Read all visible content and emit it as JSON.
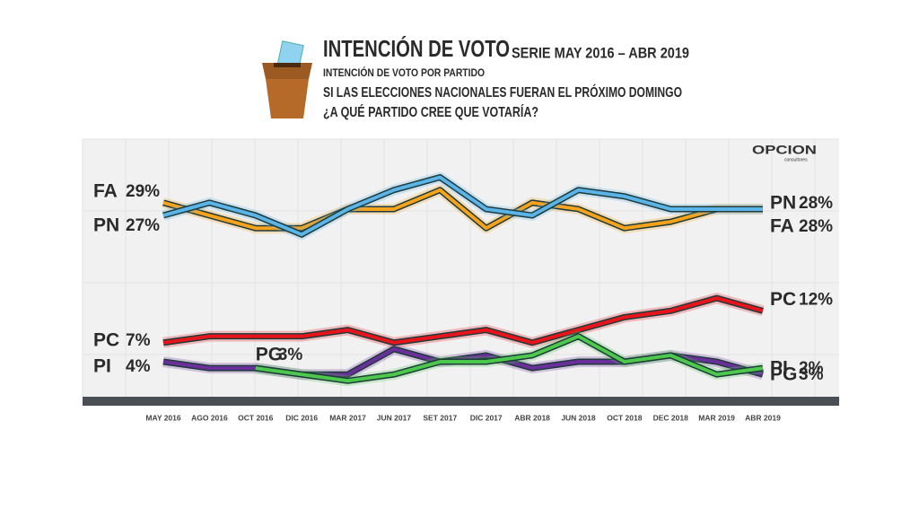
{
  "chart_data": {
    "type": "line",
    "title": "INTENCIÓN DE VOTO",
    "subtitle": "SERIE MAY 2016 – ABR 2019",
    "caption": "INTENCIÓN DE VOTO POR PARTIDO",
    "question": [
      "SI LAS ELECCIONES NACIONALES FUERAN EL PRÓXIMO DOMINGO",
      "¿A QUÉ PARTIDO CREE QUE VOTARÍA?"
    ],
    "logo": "OPCION",
    "logo_sub": "consultores",
    "categories": [
      "MAY 2016",
      "AGO 2016",
      "OCT 2016",
      "DIC 2016",
      "MAR 2017",
      "JUN 2017",
      "SET 2017",
      "DIC 2017",
      "ABR 2018",
      "JUN 2018",
      "OCT 2018",
      "DEC 2018",
      "MAR 2019",
      "ABR 2019"
    ],
    "ylim": [
      -1.5,
      39
    ],
    "grid": true,
    "series": [
      {
        "name": "FA",
        "color": "#f7a21b",
        "values": [
          29,
          27,
          25,
          25,
          28,
          28,
          31,
          25,
          29,
          28,
          25,
          26,
          28,
          28
        ],
        "value_labels": [
          "29%",
          null,
          null,
          null,
          null,
          null,
          null,
          null,
          null,
          null,
          null,
          null,
          null,
          "28%"
        ]
      },
      {
        "name": "PN",
        "color": "#5ab4e8",
        "values": [
          27,
          29,
          27,
          24,
          28,
          31,
          33,
          28,
          27,
          31,
          30,
          28,
          28,
          28
        ],
        "value_labels": [
          "27%",
          null,
          null,
          null,
          null,
          null,
          null,
          null,
          null,
          null,
          null,
          null,
          null,
          "28%"
        ]
      },
      {
        "name": "PC",
        "color": "#e8141b",
        "values": [
          7,
          8,
          8,
          8,
          9,
          7,
          8,
          9,
          7,
          9,
          11,
          12,
          14,
          12
        ],
        "value_labels": [
          "7%",
          null,
          null,
          null,
          null,
          null,
          null,
          null,
          null,
          null,
          null,
          null,
          null,
          "12%"
        ]
      },
      {
        "name": "PI",
        "color": "#6a2f9b",
        "values": [
          4,
          3,
          3,
          2,
          2,
          6,
          4,
          5,
          3,
          4,
          4,
          5,
          4,
          2
        ],
        "value_labels": [
          "4%",
          null,
          null,
          null,
          null,
          null,
          null,
          null,
          null,
          null,
          null,
          null,
          null,
          "2%"
        ]
      },
      {
        "name": "PG",
        "color": "#4cc94c",
        "values": [
          null,
          null,
          3,
          2,
          1,
          2,
          4,
          4,
          5,
          8,
          4,
          5,
          2,
          3
        ],
        "value_labels": [
          null,
          null,
          "3%",
          null,
          null,
          null,
          null,
          null,
          null,
          null,
          null,
          null,
          null,
          "3%"
        ]
      }
    ]
  }
}
